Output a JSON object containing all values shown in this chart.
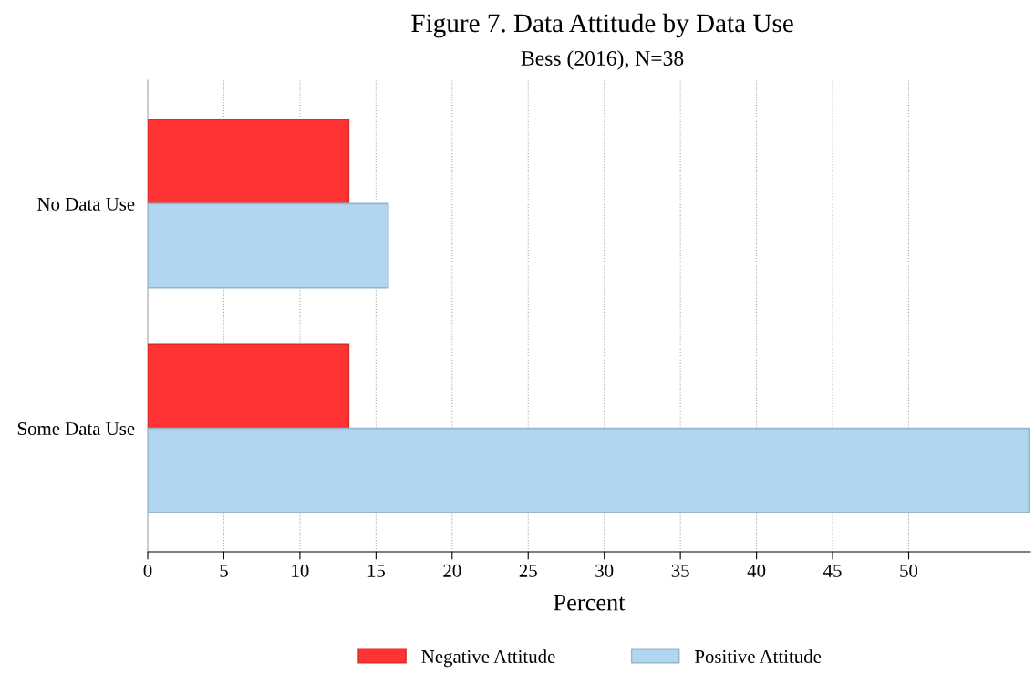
{
  "chart_data": {
    "type": "bar",
    "orientation": "horizontal",
    "title": "Figure 7. Data Attitude by Data Use",
    "subtitle": "Bess (2016), N=38",
    "xlabel": "Percent",
    "categories": [
      "No Data Use",
      "Some Data Use"
    ],
    "series": [
      {
        "name": "Negative Attitude",
        "color": "#ff3333",
        "values": [
          13.2,
          13.2
        ]
      },
      {
        "name": "Positive Attitude",
        "color": "#b0d6f0",
        "values": [
          15.8,
          57.9
        ]
      }
    ],
    "xlim": [
      0,
      58
    ],
    "xticks": [
      0,
      5,
      10,
      15,
      20,
      25,
      30,
      35,
      40,
      45,
      50
    ],
    "grid": "x",
    "legend": "bottom"
  }
}
